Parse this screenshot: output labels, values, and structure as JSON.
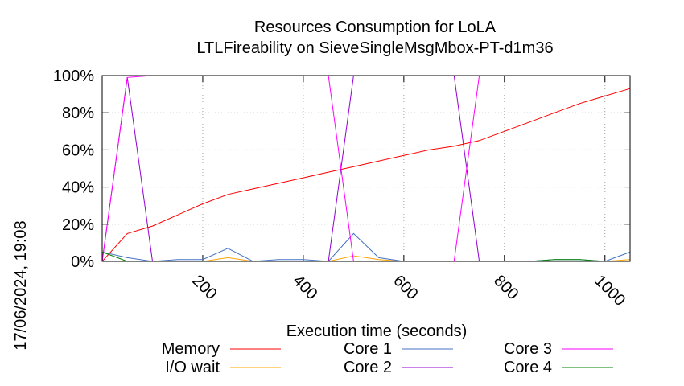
{
  "chart_data": {
    "type": "line",
    "title": "Resources Consumption for LoLA",
    "subtitle": "LTLFireability on SieveSingleMsgMbox-PT-d1m36",
    "xlabel": "Execution time (seconds)",
    "ylabel": "",
    "side_label": "17/06/2024, 19:08",
    "xlim": [
      0,
      1050
    ],
    "ylim": [
      0,
      100
    ],
    "x_ticks": [
      200,
      400,
      600,
      800,
      1000
    ],
    "y_ticks": [
      {
        "value": 0,
        "label": "0%"
      },
      {
        "value": 20,
        "label": "20%"
      },
      {
        "value": 40,
        "label": "40%"
      },
      {
        "value": 60,
        "label": "60%"
      },
      {
        "value": 80,
        "label": "80%"
      },
      {
        "value": 100,
        "label": "100%"
      }
    ],
    "grid": true,
    "legend_position": "bottom",
    "series": [
      {
        "name": "Memory",
        "color": "#ff0000",
        "points": [
          [
            0,
            0
          ],
          [
            50,
            15
          ],
          [
            100,
            19
          ],
          [
            150,
            25
          ],
          [
            200,
            31
          ],
          [
            250,
            36
          ],
          [
            300,
            39
          ],
          [
            350,
            42
          ],
          [
            400,
            45
          ],
          [
            450,
            48
          ],
          [
            500,
            51
          ],
          [
            550,
            54
          ],
          [
            600,
            57
          ],
          [
            650,
            60
          ],
          [
            700,
            62
          ],
          [
            750,
            65
          ],
          [
            800,
            70
          ],
          [
            850,
            75
          ],
          [
            900,
            80
          ],
          [
            950,
            85
          ],
          [
            1000,
            89
          ],
          [
            1050,
            93
          ]
        ]
      },
      {
        "name": "I/O wait",
        "color": "#ffa500",
        "points": [
          [
            0,
            0
          ],
          [
            50,
            0
          ],
          [
            100,
            0
          ],
          [
            150,
            0
          ],
          [
            200,
            0
          ],
          [
            250,
            2
          ],
          [
            300,
            0
          ],
          [
            350,
            0
          ],
          [
            400,
            0
          ],
          [
            450,
            0
          ],
          [
            500,
            3
          ],
          [
            550,
            1
          ],
          [
            600,
            0
          ],
          [
            650,
            0
          ],
          [
            700,
            0
          ],
          [
            750,
            0
          ],
          [
            800,
            0
          ],
          [
            850,
            0
          ],
          [
            900,
            0
          ],
          [
            950,
            0
          ],
          [
            1000,
            0
          ],
          [
            1050,
            1
          ]
        ]
      },
      {
        "name": "Core 1",
        "color": "#4472c4",
        "points": [
          [
            0,
            5
          ],
          [
            50,
            2
          ],
          [
            100,
            0
          ],
          [
            150,
            1
          ],
          [
            200,
            1
          ],
          [
            250,
            7
          ],
          [
            300,
            0
          ],
          [
            350,
            1
          ],
          [
            400,
            1
          ],
          [
            450,
            0
          ],
          [
            500,
            15
          ],
          [
            550,
            2
          ],
          [
            600,
            0
          ],
          [
            650,
            0
          ],
          [
            700,
            0
          ],
          [
            750,
            0
          ],
          [
            800,
            0
          ],
          [
            850,
            0
          ],
          [
            900,
            1
          ],
          [
            950,
            1
          ],
          [
            1000,
            0
          ],
          [
            1050,
            5
          ]
        ]
      },
      {
        "name": "Core 2",
        "color": "#9400d3",
        "points": [
          [
            0,
            0
          ],
          [
            50,
            99
          ],
          [
            100,
            0
          ],
          [
            150,
            0
          ],
          [
            200,
            0
          ],
          [
            250,
            0
          ],
          [
            300,
            0
          ],
          [
            350,
            0
          ],
          [
            400,
            0
          ],
          [
            450,
            0
          ],
          [
            500,
            100
          ],
          [
            550,
            100
          ],
          [
            600,
            100
          ],
          [
            650,
            100
          ],
          [
            700,
            100
          ],
          [
            750,
            0
          ],
          [
            800,
            0
          ],
          [
            850,
            0
          ],
          [
            900,
            0
          ],
          [
            950,
            0
          ],
          [
            1000,
            0
          ],
          [
            1050,
            0
          ]
        ]
      },
      {
        "name": "Core 3",
        "color": "#ff00ff",
        "points": [
          [
            0,
            0
          ],
          [
            50,
            99
          ],
          [
            100,
            100
          ],
          [
            150,
            100
          ],
          [
            200,
            100
          ],
          [
            250,
            100
          ],
          [
            300,
            100
          ],
          [
            350,
            100
          ],
          [
            400,
            100
          ],
          [
            450,
            100
          ],
          [
            500,
            0
          ],
          [
            550,
            0
          ],
          [
            600,
            0
          ],
          [
            650,
            0
          ],
          [
            700,
            0
          ],
          [
            750,
            100
          ],
          [
            800,
            100
          ],
          [
            850,
            100
          ],
          [
            900,
            100
          ],
          [
            950,
            100
          ],
          [
            1000,
            100
          ],
          [
            1050,
            100
          ]
        ]
      },
      {
        "name": "Core 4",
        "color": "#008000",
        "points": [
          [
            0,
            5
          ],
          [
            50,
            0
          ],
          [
            100,
            0
          ],
          [
            150,
            0
          ],
          [
            200,
            0
          ],
          [
            250,
            0
          ],
          [
            300,
            0
          ],
          [
            350,
            0
          ],
          [
            400,
            0
          ],
          [
            450,
            0
          ],
          [
            500,
            0
          ],
          [
            550,
            0
          ],
          [
            600,
            0
          ],
          [
            650,
            0
          ],
          [
            700,
            0
          ],
          [
            750,
            0
          ],
          [
            800,
            0
          ],
          [
            850,
            0
          ],
          [
            900,
            1
          ],
          [
            950,
            1
          ],
          [
            1000,
            0
          ],
          [
            1050,
            0
          ]
        ]
      }
    ]
  }
}
